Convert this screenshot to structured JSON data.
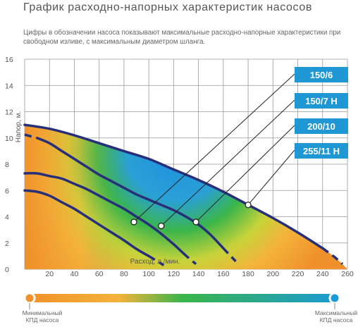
{
  "title": "График расходно-напорных характеристик насосов",
  "subtitle": "Цифры в обозначении насоса показывают максимальные расходно-напорные характеристики при свободном изливе, с максимальным диаметром шланга.",
  "legend": {
    "min_label_line1": "Минимальный",
    "min_label_line2": "КПД насоса",
    "max_label_line1": "Максимальный",
    "max_label_line2": "КПД насоса",
    "color_min": "#f0902a",
    "color_max": "#1a9ad6"
  },
  "colors": {
    "curve": "#272f7a",
    "label_box": "#1f97d4",
    "label_text": "#ffffff",
    "grid": "#9a9a9a"
  },
  "chart_data": {
    "type": "line",
    "title": "",
    "xlabel": "Расход, л./мин.",
    "ylabel": "Напор, м.",
    "xlim": [
      0,
      260
    ],
    "ylim": [
      0,
      16
    ],
    "xticks": [
      20,
      40,
      60,
      80,
      100,
      120,
      140,
      160,
      180,
      200,
      220,
      240,
      260
    ],
    "yticks": [
      0,
      2,
      4,
      6,
      8,
      10,
      12,
      14,
      16
    ],
    "grid": true,
    "series": [
      {
        "name": "150/6",
        "label_anchor": {
          "x": 88,
          "y": 3.6
        },
        "points": [
          [
            0,
            6.0
          ],
          [
            10,
            5.9
          ],
          [
            20,
            5.6
          ],
          [
            30,
            5.1
          ],
          [
            40,
            4.6
          ],
          [
            50,
            4.0
          ],
          [
            60,
            3.4
          ],
          [
            70,
            2.8
          ],
          [
            80,
            2.2
          ],
          [
            90,
            1.55
          ],
          [
            100,
            1.0
          ],
          [
            108,
            0.55
          ],
          [
            112,
            0.3
          ]
        ]
      },
      {
        "name": "150/7 H",
        "label_anchor": {
          "x": 110,
          "y": 3.3
        },
        "points": [
          [
            0,
            7.3
          ],
          [
            10,
            7.3
          ],
          [
            20,
            7.1
          ],
          [
            30,
            6.9
          ],
          [
            40,
            6.5
          ],
          [
            50,
            6.1
          ],
          [
            60,
            5.6
          ],
          [
            70,
            5.1
          ],
          [
            80,
            4.6
          ],
          [
            90,
            4.0
          ],
          [
            100,
            3.4
          ],
          [
            110,
            2.7
          ],
          [
            120,
            1.9
          ],
          [
            128,
            1.2
          ],
          [
            134,
            0.7
          ],
          [
            138,
            0.4
          ]
        ]
      },
      {
        "name": "200/10",
        "label_anchor": {
          "x": 138,
          "y": 3.6
        },
        "points": [
          [
            10,
            10.0
          ],
          [
            20,
            9.6
          ],
          [
            30,
            9.0
          ],
          [
            40,
            8.4
          ],
          [
            50,
            7.8
          ],
          [
            60,
            7.2
          ],
          [
            70,
            6.7
          ],
          [
            80,
            6.2
          ],
          [
            90,
            5.7
          ],
          [
            100,
            5.3
          ],
          [
            110,
            4.9
          ],
          [
            120,
            4.5
          ],
          [
            130,
            4.0
          ],
          [
            140,
            3.4
          ],
          [
            150,
            2.6
          ],
          [
            160,
            1.6
          ],
          [
            166,
            1.0
          ],
          [
            170,
            0.6
          ]
        ]
      },
      {
        "name": "255/11 H",
        "label_anchor": {
          "x": 180,
          "y": 4.9
        },
        "points": [
          [
            0,
            11.0
          ],
          [
            20,
            10.7
          ],
          [
            40,
            10.2
          ],
          [
            60,
            9.6
          ],
          [
            80,
            9.0
          ],
          [
            100,
            8.4
          ],
          [
            120,
            7.6
          ],
          [
            140,
            6.8
          ],
          [
            160,
            5.9
          ],
          [
            180,
            4.9
          ],
          [
            200,
            3.9
          ],
          [
            220,
            2.8
          ],
          [
            240,
            1.6
          ],
          [
            250,
            0.9
          ],
          [
            256,
            0.4
          ]
        ]
      }
    ]
  }
}
